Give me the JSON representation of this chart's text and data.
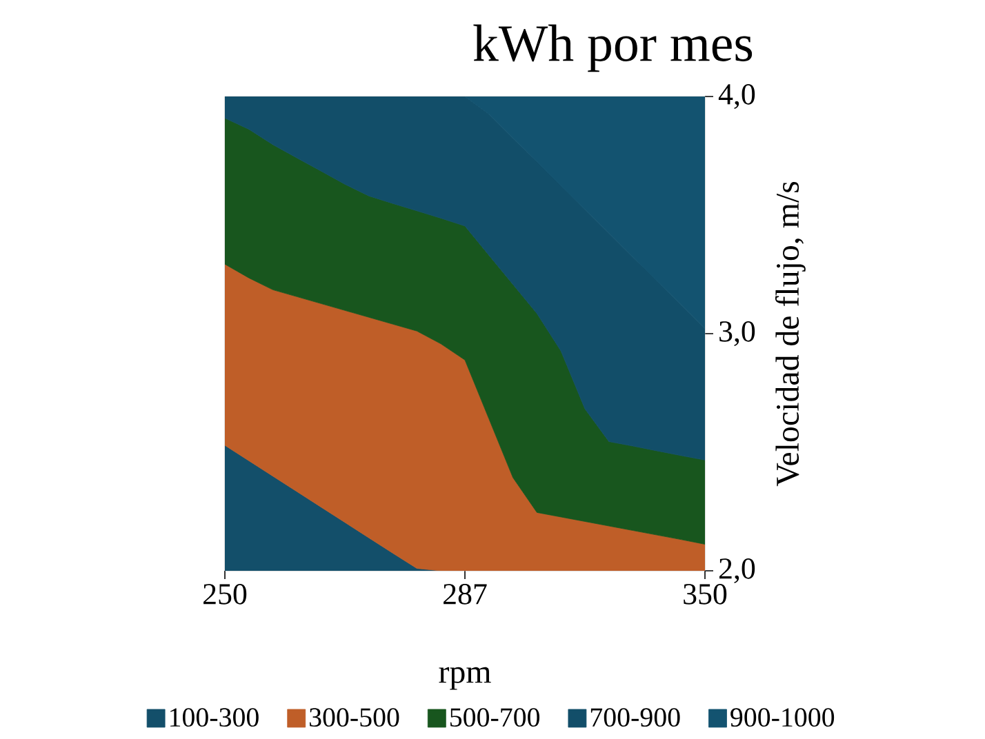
{
  "chart_data": {
    "type": "area",
    "title": "kWh por mes",
    "xlabel": "rpm",
    "ylabel": "Velocidad  de flujo, m/s",
    "categories": [
      "250",
      null,
      null,
      null,
      null,
      null,
      null,
      null,
      null,
      null,
      "287",
      null,
      null,
      null,
      null,
      null,
      null,
      null,
      null,
      null,
      "350"
    ],
    "series": [
      {
        "name": "100-300",
        "color": "#134f6a",
        "values": [
          2.529,
          2.464,
          2.399,
          2.334,
          2.269,
          2.204,
          2.139,
          2.074,
          2.01,
          2.0,
          2.0,
          2.0,
          2.0,
          2.0,
          2.0,
          2.0,
          2.0,
          2.0,
          2.0,
          2.0,
          2.0
        ]
      },
      {
        "name": "300-500",
        "color": "#bf5e28",
        "values": [
          3.293,
          3.235,
          3.185,
          3.156,
          3.127,
          3.098,
          3.069,
          3.04,
          3.011,
          2.957,
          2.889,
          2.641,
          2.393,
          2.246,
          2.227,
          2.208,
          2.189,
          2.17,
          2.151,
          2.132,
          2.112
        ]
      },
      {
        "name": "500-700",
        "color": "#18561e",
        "values": [
          3.909,
          3.862,
          3.797,
          3.741,
          3.686,
          3.63,
          3.581,
          3.549,
          3.518,
          3.487,
          3.454,
          3.331,
          3.208,
          3.085,
          2.927,
          2.683,
          2.545,
          2.526,
          2.506,
          2.486,
          2.467
        ]
      },
      {
        "name": "700-900",
        "color": "#124e69",
        "values": [
          4.0,
          4.0,
          4.0,
          4.0,
          4.0,
          4.0,
          4.0,
          4.0,
          4.0,
          4.0,
          4.0,
          3.926,
          3.825,
          3.725,
          3.624,
          3.524,
          3.424,
          3.323,
          3.223,
          3.123,
          3.022
        ]
      },
      {
        "name": "900-1000",
        "color": "#135370",
        "values": [
          null,
          null,
          null,
          null,
          null,
          null,
          null,
          null,
          null,
          null,
          4.0,
          4.0,
          4.0,
          4.0,
          4.0,
          4.0,
          4.0,
          4.0,
          4.0,
          4.0,
          4.0
        ]
      }
    ],
    "ylim": [
      2,
      4
    ],
    "yticks": [
      {
        "value": 2,
        "label": "2,0"
      },
      {
        "value": 3,
        "label": "3,0"
      },
      {
        "value": 4,
        "label": "4,0"
      }
    ],
    "legend": "bottom"
  }
}
